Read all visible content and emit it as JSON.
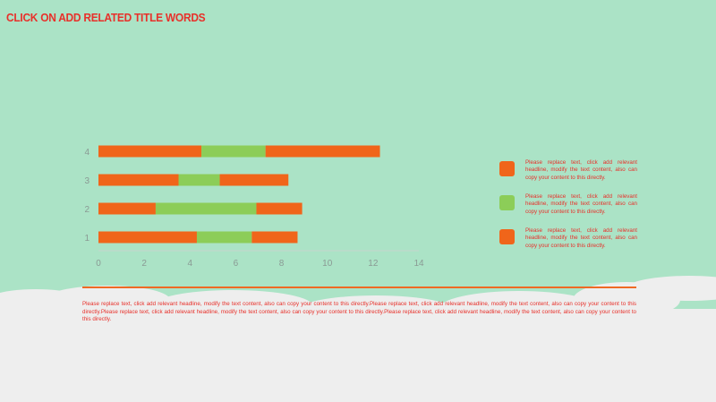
{
  "title": "CLICK ON ADD RELATED TITLE WORDS",
  "colors": {
    "background": "#abe3c6",
    "cloud": "#eeeeee",
    "accent_red": "#e8302a",
    "orange": "#f0651a",
    "green": "#8ccd58",
    "axis_text": "#8a9a94",
    "axis_line": "#c7d6cf",
    "divider": "#ef6a24"
  },
  "chart_data": {
    "type": "bar",
    "orientation": "horizontal",
    "stacked": true,
    "categories": [
      "1",
      "2",
      "3",
      "4"
    ],
    "series": [
      {
        "values": [
          4.3,
          2.5,
          3.5,
          4.5
        ],
        "color": "#f0651a"
      },
      {
        "values": [
          2.4,
          4.4,
          1.8,
          2.8
        ],
        "color": "#8ccd58"
      },
      {
        "values": [
          2.0,
          2.0,
          3.0,
          5.0
        ],
        "color": "#f0651a"
      }
    ],
    "x_ticks": [
      "0",
      "2",
      "4",
      "6",
      "8",
      "10",
      "12",
      "14"
    ],
    "xlim": [
      0,
      14
    ],
    "title": "",
    "xlabel": "",
    "ylabel": "",
    "grid": false,
    "legend": "none"
  },
  "legend": [
    {
      "text": "Please replace text, click add relevant headline, modify the text content, also can copy your content to this directly.",
      "color": "#f0651a"
    },
    {
      "text": "Please replace text, click add relevant headline, modify the text content, also can copy your content to this directly.",
      "color": "#8ccd58"
    },
    {
      "text": "Please replace text, click add relevant headline, modify the text content, also can copy your content to this directly.",
      "color": "#f0651a"
    }
  ],
  "body_text": "Please replace text, click add relevant headline, modify the text content, also can copy your content to this directly.Please replace text, click add relevant headline, modify the text content, also can copy your content to this directly.Please replace text, click add relevant headline, modify the text content, also can copy your content to this directly.Please replace text, click add relevant headline, modify the text content, also can copy your content to this directly."
}
